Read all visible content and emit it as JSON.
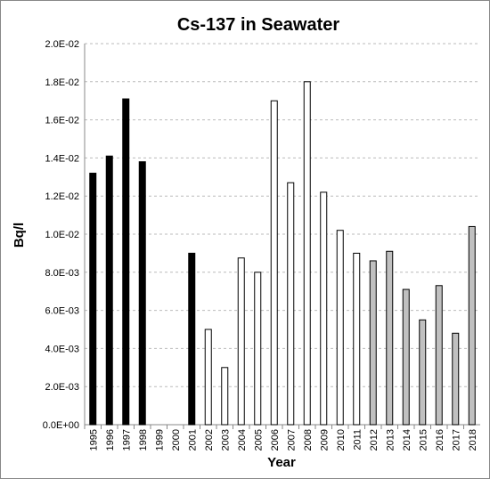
{
  "chart_data": {
    "type": "bar",
    "title": "Cs-137 in Seawater",
    "x_label": "Year",
    "y_label": "Bq/l",
    "categories": [
      "1995",
      "1996",
      "1997",
      "1998",
      "1999",
      "2000",
      "2001",
      "2002",
      "2003",
      "2004",
      "2005",
      "2006",
      "2007",
      "2008",
      "2009",
      "2010",
      "2011",
      "2012",
      "2013",
      "2014",
      "2015",
      "2016",
      "2017",
      "2018"
    ],
    "values": [
      0.0132,
      0.0141,
      0.0171,
      0.0138,
      null,
      null,
      0.009,
      0.005,
      0.003,
      0.00875,
      0.008,
      0.017,
      0.0127,
      0.018,
      0.0122,
      0.0102,
      0.009,
      0.0086,
      0.0091,
      0.0071,
      0.0055,
      0.0073,
      0.0048,
      0.0104
    ],
    "colors": [
      "#000000",
      "#000000",
      "#000000",
      "#000000",
      null,
      null,
      "#000000",
      "#ffffff",
      "#ffffff",
      "#ffffff",
      "#ffffff",
      "#ffffff",
      "#ffffff",
      "#ffffff",
      "#ffffff",
      "#ffffff",
      "#ffffff",
      "#c0c0c0",
      "#c0c0c0",
      "#c0c0c0",
      "#c0c0c0",
      "#c0c0c0",
      "#c0c0c0",
      "#c0c0c0"
    ],
    "ylim": [
      0,
      0.02
    ],
    "yticks": [
      {
        "value": 0,
        "label": "0.0E+00"
      },
      {
        "value": 0.002,
        "label": "2.0E-03"
      },
      {
        "value": 0.004,
        "label": "4.0E-03"
      },
      {
        "value": 0.006,
        "label": "6.0E-03"
      },
      {
        "value": 0.008,
        "label": "8.0E-03"
      },
      {
        "value": 0.01,
        "label": "1.0E-02"
      },
      {
        "value": 0.012,
        "label": "1.2E-02"
      },
      {
        "value": 0.014,
        "label": "1.4E-02"
      },
      {
        "value": 0.016,
        "label": "1.6E-02"
      },
      {
        "value": 0.018,
        "label": "1.8E-02"
      },
      {
        "value": 0.02,
        "label": "2.0E-02"
      }
    ],
    "grid": true
  }
}
